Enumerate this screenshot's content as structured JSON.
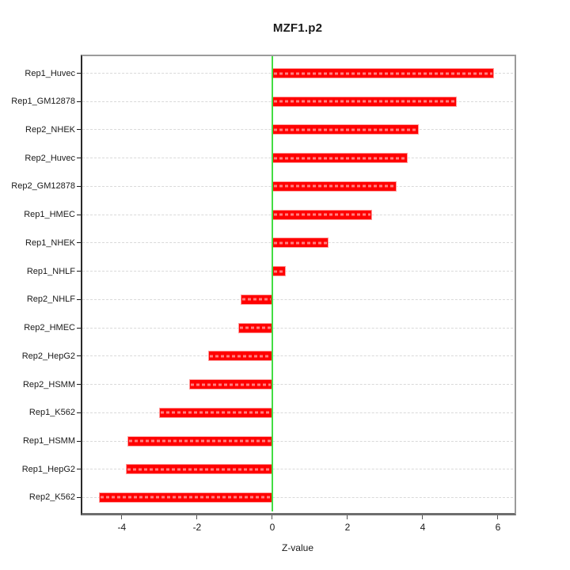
{
  "chart_data": {
    "type": "bar",
    "orientation": "horizontal",
    "title": "MZF1.p2",
    "xlabel": "Z-value",
    "ylabel": "",
    "categories": [
      "Rep1_Huvec",
      "Rep1_GM12878",
      "Rep2_NHEK",
      "Rep2_Huvec",
      "Rep2_GM12878",
      "Rep1_HMEC",
      "Rep1_NHEK",
      "Rep1_NHLF",
      "Rep2_NHLF",
      "Rep2_HMEC",
      "Rep2_HepG2",
      "Rep2_HSMM",
      "Rep1_K562",
      "Rep1_HSMM",
      "Rep1_HepG2",
      "Rep2_K562"
    ],
    "values": [
      5.9,
      4.9,
      3.9,
      3.6,
      3.3,
      2.65,
      1.5,
      0.35,
      -0.85,
      -0.9,
      -1.7,
      -2.2,
      -3.0,
      -3.85,
      -3.9,
      -4.6
    ],
    "x_ticks": [
      -4,
      -2,
      0,
      2,
      4,
      6
    ],
    "xlim": [
      -5.05,
      6.4
    ],
    "zero_reference_line": 0,
    "grid": "horizontal dashed line per category",
    "legend": "none",
    "colors": {
      "bar_fill": "#ff0000",
      "bar_border": "#ff9e9e",
      "zero_line": "#44dd44",
      "gridline": "#d9d9d9",
      "frame": "#9b9b9b",
      "text": "#1a1a1a"
    }
  }
}
